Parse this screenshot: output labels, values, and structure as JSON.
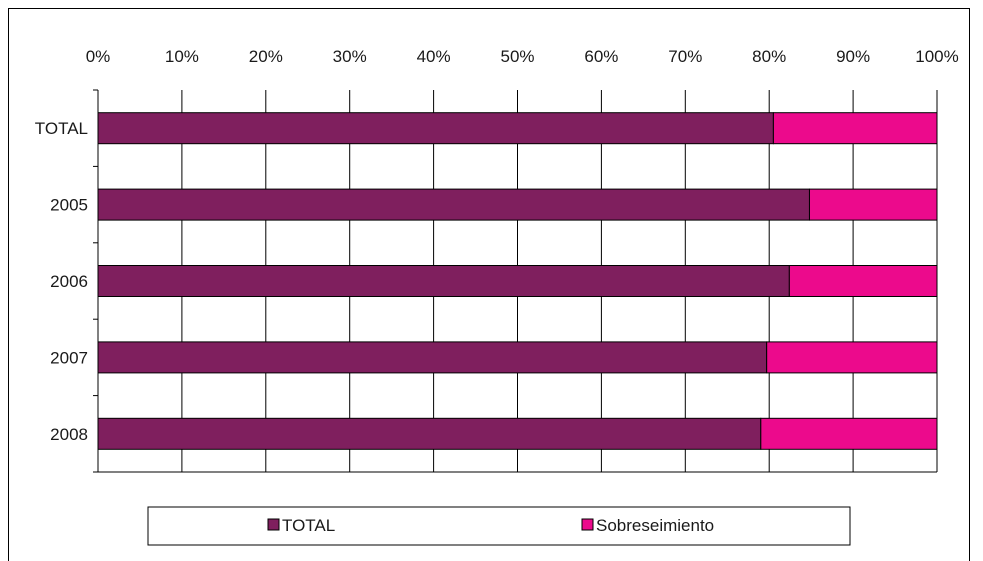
{
  "chart_data": {
    "type": "bar",
    "orientation": "horizontal",
    "stacked": true,
    "percent_stacked": true,
    "categories": [
      "TOTAL",
      "2005",
      "2006",
      "2007",
      "2008"
    ],
    "series": [
      {
        "name": "TOTAL",
        "color": "#7f1f5e",
        "values": [
          80.5,
          84.8,
          82.4,
          79.7,
          79.0
        ]
      },
      {
        "name": "Sobreseimiento",
        "color": "#ec0a8c",
        "values": [
          19.5,
          15.2,
          17.6,
          20.3,
          21.0
        ]
      }
    ],
    "x_ticks": [
      "0%",
      "10%",
      "20%",
      "30%",
      "40%",
      "50%",
      "60%",
      "70%",
      "80%",
      "90%",
      "100%"
    ],
    "xlim": [
      0,
      100
    ],
    "x_axis_position": "top",
    "grid": true,
    "legend_position": "bottom"
  }
}
